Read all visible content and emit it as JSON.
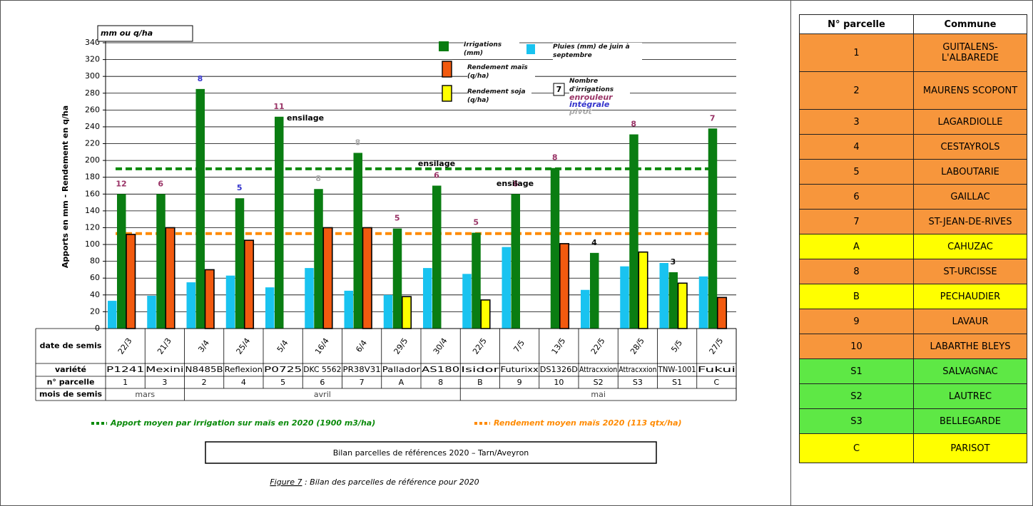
{
  "chart_data": {
    "type": "bar",
    "unit_label": "mm ou q/ha",
    "y_label": "Apports en mm - Rendement en q/ha",
    "categories": [
      "P1241",
      "Mexini",
      "N8485B",
      "Reflexion",
      "P0725",
      "DKC 5562",
      "PR38V31",
      "Pallador",
      "AS180",
      "Isidor",
      "Futurixx",
      "DS1326D",
      "Attracxxion",
      "Attracxxion",
      "TNW-1001",
      "Fukui"
    ],
    "sowing_dates": [
      "22/3",
      "21/3",
      "3/4",
      "25/4",
      "5/4",
      "16/4",
      "6/4",
      "29/5",
      "30/4",
      "22/5",
      "7/5",
      "13/5",
      "22/5",
      "28/5",
      "5/5",
      "27/5"
    ],
    "parcels": [
      "1",
      "3",
      "2",
      "4",
      "5",
      "6",
      "7",
      "A",
      "8",
      "B",
      "9",
      "10",
      "S2",
      "S3",
      "S1",
      "C"
    ],
    "sowing_months": [
      "mars",
      null,
      "avril",
      null,
      null,
      null,
      null,
      null,
      null,
      "mai",
      null,
      null,
      null,
      null,
      null,
      null
    ],
    "row_labels": [
      "date de semis",
      "variété",
      "n° parcelle",
      "mois de semis"
    ],
    "series": [
      {
        "name": "Pluies (mm) de juin à septembre",
        "color": "#19c3f0",
        "values": [
          33,
          39,
          55,
          63,
          49,
          72,
          45,
          40,
          72,
          65,
          97,
          null,
          46,
          74,
          78,
          62
        ]
      },
      {
        "name": "Irrigations (mm)",
        "color": "#0a7d12",
        "values": [
          160,
          160,
          285,
          155,
          252,
          166,
          209,
          119,
          170,
          114,
          160,
          191,
          90,
          231,
          67,
          238
        ]
      },
      {
        "name": "Rendement maïs (q/ha)",
        "color": "#f25a0f",
        "values": [
          112,
          120,
          70,
          105,
          null,
          120,
          120,
          null,
          null,
          null,
          null,
          101,
          null,
          null,
          null,
          37
        ]
      },
      {
        "name": "Rendement soja (q/ha)",
        "color": "#ffff00",
        "values": [
          null,
          null,
          null,
          null,
          null,
          null,
          null,
          38,
          null,
          34,
          null,
          null,
          null,
          91,
          54,
          null
        ]
      }
    ],
    "irrigation_counts": {
      "title": "Nombre d'irrigations",
      "legend_value": 7,
      "types": [
        {
          "label": "enrouleur",
          "color": "#993366"
        },
        {
          "label": "intégrale",
          "color": "#3333cc"
        },
        {
          "label": "pivot",
          "color": "#aaaaaa"
        }
      ],
      "values": [
        12,
        6,
        8,
        5,
        11,
        8,
        8,
        5,
        6,
        5,
        6,
        8,
        4,
        8,
        3,
        7
      ],
      "colors": [
        "#993366",
        "#993366",
        "#3333cc",
        "#3333cc",
        "#993366",
        "#aaaaaa",
        "#aaaaaa",
        "#993366",
        "#993366",
        "#993366",
        "#993366",
        "#993366",
        "#111111",
        "#993366",
        "#111111",
        "#993366"
      ]
    },
    "annotations": [
      "ensilage",
      "ensilage",
      "ensilage"
    ],
    "reference_lines": [
      {
        "label": "Apport moyen par irrigation sur maïs en 2020 (1900 m3/ha)",
        "value": 190,
        "color": "#0a8a0a"
      },
      {
        "label": "Rendement moyen maïs 2020 (113 qtx/ha)",
        "value": 113,
        "color": "#ff8a00"
      }
    ],
    "ylim": [
      0,
      340
    ],
    "yticks": [
      0,
      20,
      40,
      60,
      80,
      100,
      120,
      140,
      160,
      180,
      200,
      220,
      240,
      260,
      280,
      300,
      320,
      340
    ],
    "grid": true,
    "title": "Bilan parcelles de références 2020 – Tarn/Aveyron",
    "caption_ref": "Figure 7",
    "caption": " : Bilan des parcelles de référence pour 2020"
  },
  "table": {
    "header": [
      "N° parcelle",
      "Commune"
    ],
    "rows": [
      [
        "1",
        "GUITALENS-L'ALBAREDE"
      ],
      [
        "2",
        "MAURENS SCOPONT"
      ],
      [
        "3",
        "LAGARDIOLLE"
      ],
      [
        "4",
        "CESTAYROLS"
      ],
      [
        "5",
        "LABOUTARIE"
      ],
      [
        "6",
        "GAILLAC"
      ],
      [
        "7",
        "ST-JEAN-DE-RIVES"
      ],
      [
        "A",
        "CAHUZAC"
      ],
      [
        "8",
        "ST-URCISSE"
      ],
      [
        "B",
        "PECHAUDIER"
      ],
      [
        "9",
        "LAVAUR"
      ],
      [
        "10",
        "LABARTHE BLEYS"
      ],
      [
        "S1",
        "SALVAGNAC"
      ],
      [
        "S2",
        "LAUTREC"
      ],
      [
        "S3",
        "BELLEGARDE"
      ],
      [
        "C",
        "PARISOT"
      ]
    ],
    "row_colors": [
      "#f7963c",
      "#f7963c",
      "#f7963c",
      "#f7963c",
      "#f7963c",
      "#f7963c",
      "#f7963c",
      "#ffff00",
      "#f7963c",
      "#ffff00",
      "#f7963c",
      "#f7963c",
      "#5ee845",
      "#5ee845",
      "#5ee845",
      "#ffff00"
    ]
  }
}
